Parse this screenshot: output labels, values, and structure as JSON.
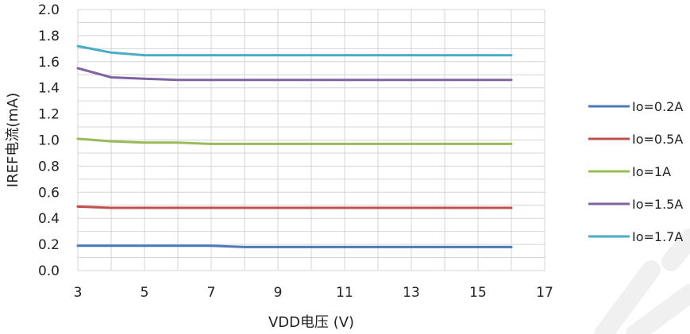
{
  "chart_data": {
    "type": "line",
    "xlabel": "VDD电压 (V)",
    "ylabel": "IREF电流(mA)",
    "xlim": [
      3,
      17
    ],
    "ylim": [
      0.0,
      2.0
    ],
    "x_ticks": [
      "3",
      "5",
      "7",
      "9",
      "11",
      "13",
      "15",
      "17"
    ],
    "y_ticks": [
      "0.0",
      "0.2",
      "0.4",
      "0.6",
      "0.8",
      "1.0",
      "1.2",
      "1.4",
      "1.6",
      "1.8",
      "2.0"
    ],
    "grid": true,
    "legend_position": "right",
    "x": [
      3,
      4,
      5,
      6,
      7,
      8,
      9,
      10,
      11,
      12,
      13,
      14,
      15,
      16
    ],
    "series": [
      {
        "name": "Io=0.2A",
        "color": "#4a7ab8",
        "values": [
          0.19,
          0.19,
          0.19,
          0.19,
          0.19,
          0.18,
          0.18,
          0.18,
          0.18,
          0.18,
          0.18,
          0.18,
          0.18,
          0.18
        ]
      },
      {
        "name": "Io=0.5A",
        "color": "#c0504d",
        "values": [
          0.49,
          0.48,
          0.48,
          0.48,
          0.48,
          0.48,
          0.48,
          0.48,
          0.48,
          0.48,
          0.48,
          0.48,
          0.48,
          0.48
        ]
      },
      {
        "name": "Io=1A",
        "color": "#9bbb59",
        "values": [
          1.01,
          0.99,
          0.98,
          0.98,
          0.97,
          0.97,
          0.97,
          0.97,
          0.97,
          0.97,
          0.97,
          0.97,
          0.97,
          0.97
        ]
      },
      {
        "name": "Io=1.5A",
        "color": "#8064a2",
        "values": [
          1.55,
          1.48,
          1.47,
          1.46,
          1.46,
          1.46,
          1.46,
          1.46,
          1.46,
          1.46,
          1.46,
          1.46,
          1.46,
          1.46
        ]
      },
      {
        "name": "Io=1.7A",
        "color": "#4bacc6",
        "values": [
          1.72,
          1.67,
          1.65,
          1.65,
          1.65,
          1.65,
          1.65,
          1.65,
          1.65,
          1.65,
          1.65,
          1.65,
          1.65,
          1.65
        ]
      }
    ]
  }
}
